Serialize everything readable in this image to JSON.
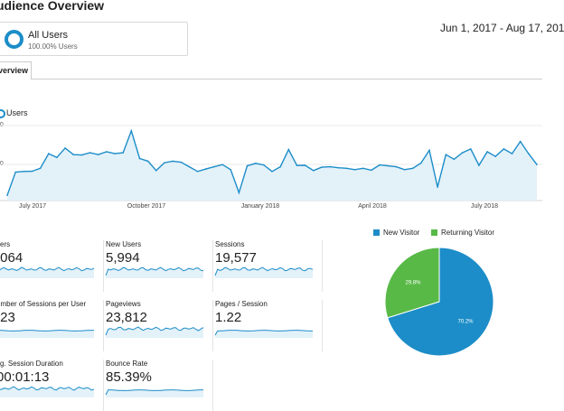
{
  "header": {
    "title": "udience Overview",
    "segment": {
      "name": "All Users",
      "percent": "100.00% Users"
    },
    "date_range": "Jun 1, 2017 - Aug 17, 201"
  },
  "tabs": [
    {
      "label": "verview"
    }
  ],
  "main_chart": {
    "legend": "Users",
    "y_ticks": [
      "00",
      "00"
    ],
    "x_ticks": [
      "July 2017",
      "October 2017",
      "January 2018",
      "April 2018",
      "July 2018"
    ]
  },
  "metrics": [
    {
      "label": "sers",
      "value": ",064"
    },
    {
      "label": "New Users",
      "value": "5,994"
    },
    {
      "label": "Sessions",
      "value": "19,577"
    },
    {
      "label": "umber of Sessions per User",
      "value": ".23"
    },
    {
      "label": "Pageviews",
      "value": "23,812"
    },
    {
      "label": "Pages / Session",
      "value": "1.22"
    },
    {
      "label": "vg. Session Duration",
      "value": "00:01:13"
    },
    {
      "label": "Bounce Rate",
      "value": "85.39%"
    }
  ],
  "pie": {
    "legend": [
      {
        "label": "New Visitor",
        "color": "#1c8dc8"
      },
      {
        "label": "Returning Visitor",
        "color": "#58b947"
      }
    ],
    "slices": [
      {
        "label": "70.2%",
        "value": 70.2,
        "color": "#1c8dc8"
      },
      {
        "label": "29.8%",
        "value": 29.8,
        "color": "#58b947"
      }
    ]
  },
  "colors": {
    "accent": "#1c8dc8",
    "fill": "#e3f1f9",
    "grid": "#e8e8e8"
  },
  "chart_data": {
    "type": "area",
    "series": [
      {
        "name": "Users",
        "values": [
          0.28,
          1.52,
          1.55,
          1.56,
          1.72,
          2.5,
          2.3,
          2.8,
          2.45,
          2.43,
          2.55,
          2.45,
          2.6,
          2.5,
          2.55,
          3.72,
          2.24,
          2.1,
          1.6,
          2.02,
          2.1,
          2.05,
          1.8,
          1.55,
          1.68,
          1.8,
          1.92,
          1.65,
          0.42,
          1.85,
          1.98,
          1.9,
          1.55,
          1.8,
          2.72,
          1.87,
          1.88,
          1.6,
          1.78,
          1.8,
          1.75,
          1.72,
          1.65,
          1.72,
          1.62,
          1.9,
          1.85,
          1.8,
          1.65,
          1.72,
          2.0,
          2.68,
          0.72,
          2.45,
          2.2,
          2.55,
          2.75,
          1.88,
          2.6,
          2.35,
          2.75,
          2.5,
          3.15,
          2.5,
          1.92
        ]
      }
    ],
    "x_tick_labels": [
      "July 2017",
      "October 2017",
      "January 2018",
      "April 2018",
      "July 2018"
    ],
    "y_tick_labels": [
      "00",
      "00"
    ],
    "grid": true,
    "legend_position": "top-left"
  }
}
